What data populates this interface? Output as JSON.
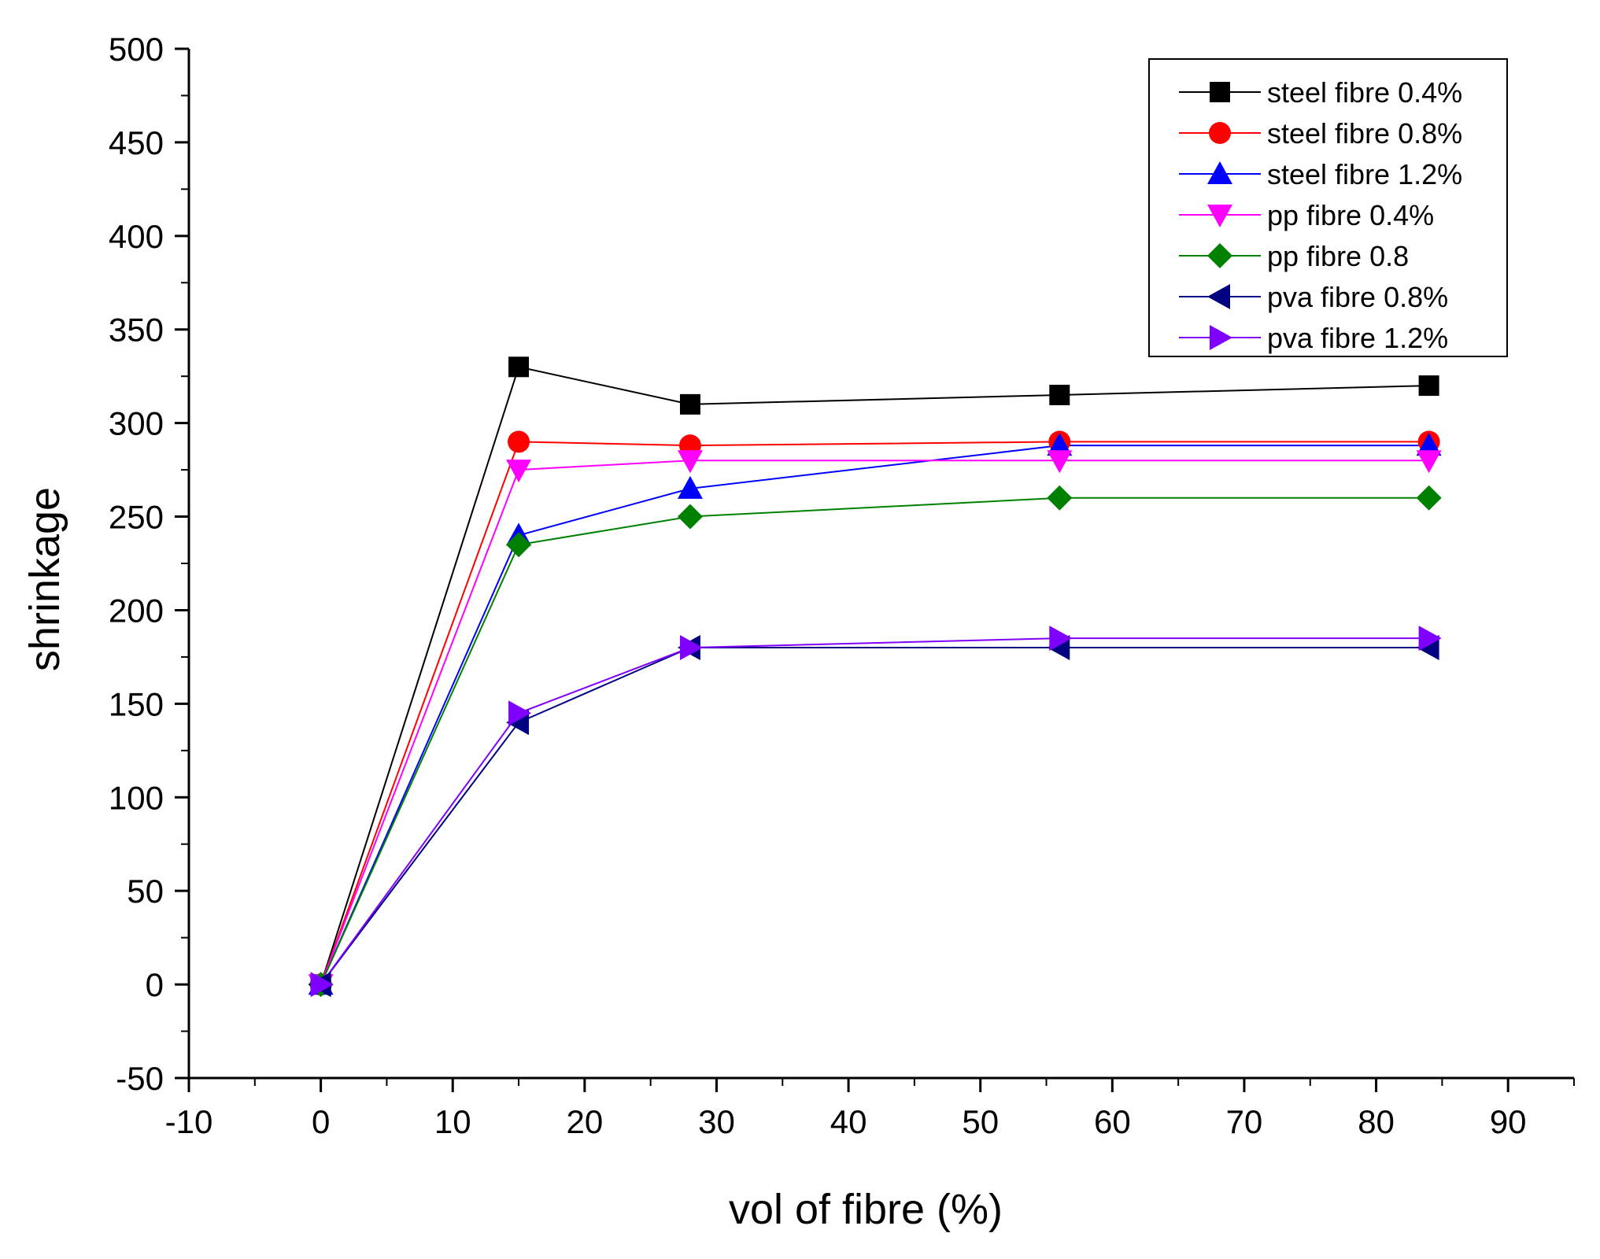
{
  "chart_data": {
    "type": "line",
    "title": "",
    "xlabel": "vol of fibre (%)",
    "ylabel": "shrinkage",
    "xlim": [
      -10,
      95
    ],
    "ylim": [
      -50,
      500
    ],
    "x_ticks": [
      -10,
      0,
      10,
      20,
      30,
      40,
      50,
      60,
      70,
      80,
      90
    ],
    "y_ticks": [
      -50,
      0,
      50,
      100,
      150,
      200,
      250,
      300,
      350,
      400,
      450,
      500
    ],
    "x_tick_labels": [
      "-10",
      "0",
      "10",
      "20",
      "30",
      "40",
      "50",
      "60",
      "70",
      "80",
      "90"
    ],
    "y_tick_labels": [
      "-50",
      "0",
      "50",
      "100",
      "150",
      "200",
      "250",
      "300",
      "350",
      "400",
      "450",
      "500"
    ],
    "grid": false,
    "legend_position": "top-right",
    "x": [
      0,
      15,
      28,
      56,
      84
    ],
    "series": [
      {
        "name": "steel fibre 0.4%",
        "color": "#000000",
        "marker": "square",
        "values": [
          0,
          330,
          310,
          315,
          320
        ]
      },
      {
        "name": "steel fibre 0.8%",
        "color": "#ff0000",
        "marker": "circle",
        "values": [
          0,
          290,
          288,
          290,
          290
        ]
      },
      {
        "name": "steel fibre 1.2%",
        "color": "#0000ff",
        "marker": "triangle-up",
        "values": [
          0,
          240,
          265,
          288,
          288
        ]
      },
      {
        "name": "pp fibre 0.4%",
        "color": "#ff00ff",
        "marker": "triangle-down",
        "values": [
          0,
          275,
          280,
          280,
          280
        ]
      },
      {
        "name": "pp fibre 0.8",
        "color": "#008000",
        "marker": "diamond",
        "values": [
          0,
          235,
          250,
          260,
          260
        ]
      },
      {
        "name": "pva fibre 0.8%",
        "color": "#000080",
        "marker": "triangle-left",
        "values": [
          0,
          140,
          180,
          180,
          180
        ]
      },
      {
        "name": "pva fibre 1.2%",
        "color": "#8000ff",
        "marker": "triangle-right",
        "values": [
          0,
          145,
          180,
          185,
          185
        ]
      }
    ]
  }
}
